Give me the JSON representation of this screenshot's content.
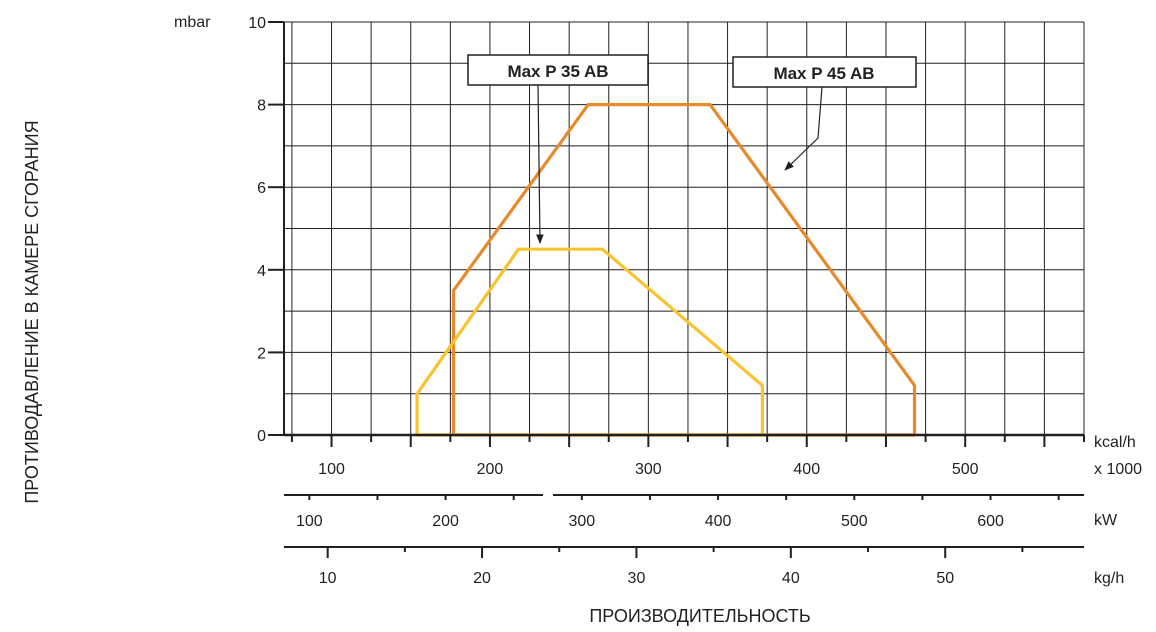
{
  "chart_data": {
    "type": "line",
    "xlabel": "ПРОИЗВОДИТЕЛЬНОСТЬ",
    "ylabel": "ПРОТИВОДАВЛЕНИЕ В КАМЕРЕ СГОРАНИЯ",
    "y_unit": "mbar",
    "ylim": [
      0,
      10
    ],
    "y_ticks": [
      0,
      2,
      4,
      6,
      8,
      10
    ],
    "grid": true,
    "x_axes": [
      {
        "unit": "kcal/h",
        "unit2": "x 1000",
        "range": [
          70,
          575
        ],
        "ticks": [
          100,
          200,
          300,
          400,
          500
        ]
      },
      {
        "unit": "kW",
        "range": [
          81.4,
          668.6
        ],
        "ticks": [
          100,
          200,
          300,
          400,
          500,
          600
        ]
      },
      {
        "unit": "kg/h",
        "range": [
          7.17,
          58.99
        ],
        "ticks": [
          10,
          20,
          30,
          40,
          50
        ]
      }
    ],
    "series": [
      {
        "name": "Max P 45 AB",
        "color": "#e8892b",
        "x_unit": "kcal/h x 1000",
        "points": [
          [
            177,
            0
          ],
          [
            177,
            3.5
          ],
          [
            262,
            8
          ],
          [
            339,
            8
          ],
          [
            468,
            1.2
          ],
          [
            468,
            0
          ],
          [
            177,
            0
          ]
        ]
      },
      {
        "name": "Max P 35 AB",
        "color": "#f9c22e",
        "x_unit": "kcal/h x 1000",
        "points": [
          [
            154,
            0
          ],
          [
            154,
            1
          ],
          [
            218,
            4.5
          ],
          [
            271,
            4.5
          ],
          [
            372,
            1.2
          ],
          [
            372,
            0
          ],
          [
            154,
            0
          ]
        ]
      }
    ]
  }
}
